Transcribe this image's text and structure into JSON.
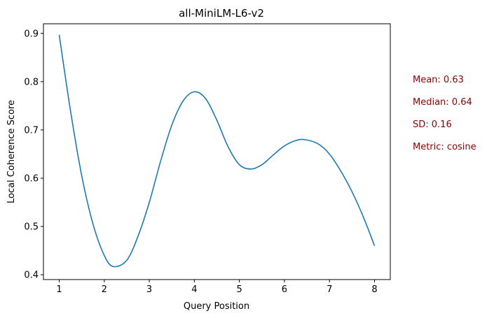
{
  "chart_data": {
    "type": "line",
    "title": "all-MiniLM-L6-v2",
    "xlabel": "Query Position",
    "ylabel": "Local Coherence Score",
    "xlim": [
      0.65,
      8.35
    ],
    "ylim": [
      0.39,
      0.92
    ],
    "xticks": [
      1,
      2,
      3,
      4,
      5,
      6,
      7,
      8
    ],
    "yticks": [
      0.4,
      0.5,
      0.6,
      0.7,
      0.8,
      0.9
    ],
    "xtick_labels": [
      "1",
      "2",
      "3",
      "4",
      "5",
      "6",
      "7",
      "8"
    ],
    "ytick_labels": [
      "0.4",
      "0.5",
      "0.6",
      "0.7",
      "0.8",
      "0.9"
    ],
    "grid": false,
    "color": "#1f77b4",
    "series": [
      {
        "x": [
          1.0,
          1.25,
          1.5,
          1.75,
          2.0,
          2.2,
          2.5,
          2.75,
          3.0,
          3.25,
          3.5,
          3.75,
          4.0,
          4.25,
          4.5,
          4.75,
          5.0,
          5.25,
          5.5,
          5.75,
          6.0,
          6.25,
          6.45,
          6.75,
          7.0,
          7.25,
          7.5,
          7.75,
          8.0
        ],
        "values": [
          0.897,
          0.74,
          0.605,
          0.505,
          0.44,
          0.417,
          0.43,
          0.48,
          0.55,
          0.635,
          0.71,
          0.76,
          0.779,
          0.765,
          0.72,
          0.665,
          0.628,
          0.619,
          0.628,
          0.648,
          0.667,
          0.678,
          0.68,
          0.671,
          0.65,
          0.615,
          0.572,
          0.52,
          0.46
        ]
      }
    ],
    "annotations": [
      "Mean: 0.63",
      "Median: 0.64",
      "SD: 0.16",
      "Metric: cosine"
    ]
  }
}
